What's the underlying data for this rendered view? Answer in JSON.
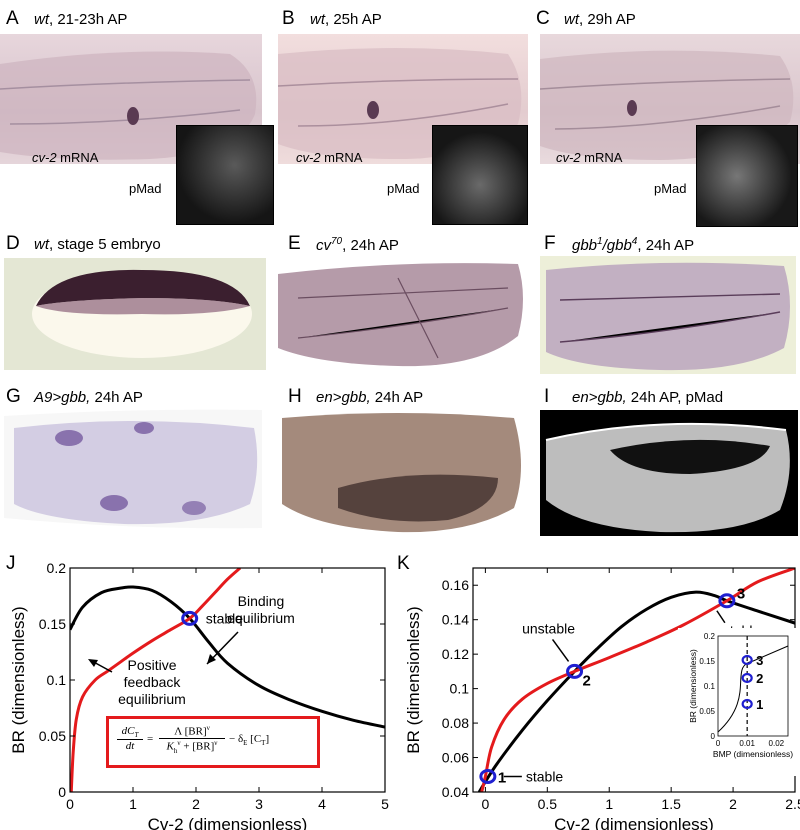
{
  "panels": {
    "A": {
      "letter": "A",
      "genotype": "wt",
      "caption_rest": ", 21-23h AP",
      "mrna_gene": "cv-2",
      "mrna_word": " mRNA",
      "inset": "pMad"
    },
    "B": {
      "letter": "B",
      "genotype": "wt",
      "caption_rest": ", 25h AP",
      "mrna_gene": "cv-2",
      "mrna_word": " mRNA",
      "inset": "pMad"
    },
    "C": {
      "letter": "C",
      "genotype": "wt",
      "caption_rest": ", 29h AP",
      "mrna_gene": "cv-2",
      "mrna_word": " mRNA",
      "inset": "pMad"
    },
    "D": {
      "letter": "D",
      "genotype": "wt",
      "caption_rest": ", stage 5 embryo"
    },
    "E": {
      "letter": "E",
      "genotype": "cv",
      "sup": "70",
      "caption_rest": ", 24h AP"
    },
    "F": {
      "letter": "F",
      "genotype": "gbb",
      "sup": "1",
      "genotype2": "/gbb",
      "sup2": "4",
      "caption_rest": ", 24h AP"
    },
    "G": {
      "letter": "G",
      "genotype": "A9>gbb,",
      "caption_rest": " 24h AP"
    },
    "H": {
      "letter": "H",
      "genotype": "en>gbb,",
      "caption_rest": " 24h AP"
    },
    "I": {
      "letter": "I",
      "genotype": "en>gbb,",
      "caption_rest": " 24h AP, pMad"
    },
    "J": {
      "letter": "J"
    },
    "K": {
      "letter": "K"
    }
  },
  "colors": {
    "red_curve": "#e41a1c",
    "black_curve": "#000000",
    "marker": "#1f1fd0",
    "equation_border": "#e41a1c"
  },
  "chart_data": [
    {
      "id": "J",
      "type": "line",
      "xlabel": "Cv-2 (dimensionless)",
      "ylabel": "BR (dimensionless)",
      "xlim": [
        0,
        5
      ],
      "ylim": [
        0,
        0.2
      ],
      "xticks": [
        "0",
        "1",
        "2",
        "3",
        "4",
        "5"
      ],
      "yticks": [
        "0",
        "0.05",
        "0.1",
        "0.15",
        "0.2"
      ],
      "series": [
        {
          "id": "binding",
          "color": "#000000",
          "x": [
            0,
            0.2,
            0.5,
            0.8,
            1.0,
            1.3,
            1.6,
            1.9,
            2.2,
            2.5,
            3.0,
            3.5,
            4.0,
            4.5,
            5.0
          ],
          "y": [
            0.145,
            0.165,
            0.178,
            0.182,
            0.183,
            0.18,
            0.17,
            0.155,
            0.134,
            0.115,
            0.095,
            0.082,
            0.072,
            0.064,
            0.058
          ]
        },
        {
          "id": "feedback",
          "color": "#e41a1c",
          "x": [
            0.02,
            0.05,
            0.1,
            0.2,
            0.4,
            0.6,
            0.8,
            1.0,
            1.3,
            1.6,
            1.9,
            2.1,
            2.3,
            2.5,
            2.7
          ],
          "y": [
            0.0,
            0.035,
            0.065,
            0.085,
            0.1,
            0.108,
            0.116,
            0.124,
            0.135,
            0.145,
            0.155,
            0.166,
            0.178,
            0.19,
            0.2
          ]
        }
      ],
      "points": [
        {
          "x": 1.9,
          "y": 0.155,
          "label": ""
        }
      ],
      "annotations": [
        "stable",
        "Binding equilibrium",
        "Positive feedback equilibrium"
      ],
      "annotation_lines": {
        "binding": [
          "Binding",
          "equilibrium"
        ],
        "feedback": [
          "Positive",
          "feedback",
          "equilibrium"
        ]
      },
      "equation": {
        "lhs_num": "dC",
        "lhs_sub": "T",
        "lhs_den": "dt",
        "num": "Λ [BR]",
        "num_sup": "ν",
        "den": "K",
        "den_sub": "h",
        "den_sup": "ν",
        "den_rest": " + [BR]",
        "den_sup2": "ν",
        "tail": " − δ",
        "tail_sub": "E",
        "tail_rest": " [C",
        "tail_sub2": "T",
        "tail_end": "]"
      }
    },
    {
      "id": "K",
      "type": "line",
      "xlabel": "Cv-2 (dimensionless)",
      "ylabel": "BR (dimensionless)",
      "xlim": [
        -0.1,
        2.5
      ],
      "ylim": [
        0.04,
        0.17
      ],
      "xticks": [
        "0",
        "0.5",
        "1",
        "1.5",
        "2",
        "2.5"
      ],
      "yticks": [
        "0.04",
        "0.06",
        "0.08",
        "0.1",
        "0.12",
        "0.14",
        "0.16"
      ],
      "series": [
        {
          "id": "binding",
          "color": "#000000",
          "x": [
            -0.05,
            0.0,
            0.1,
            0.3,
            0.5,
            0.72,
            0.9,
            1.1,
            1.3,
            1.5,
            1.7,
            1.85,
            1.95,
            2.2,
            2.5
          ],
          "y": [
            0.04,
            0.046,
            0.057,
            0.076,
            0.093,
            0.11,
            0.123,
            0.136,
            0.146,
            0.153,
            0.156,
            0.154,
            0.151,
            0.145,
            0.138
          ]
        },
        {
          "id": "feedback",
          "color": "#e41a1c",
          "x": [
            -0.03,
            0.0,
            0.05,
            0.15,
            0.3,
            0.5,
            0.72,
            1.0,
            1.3,
            1.6,
            1.95,
            2.2,
            2.5
          ],
          "y": [
            0.04,
            0.049,
            0.066,
            0.082,
            0.094,
            0.103,
            0.11,
            0.118,
            0.127,
            0.137,
            0.151,
            0.162,
            0.17
          ]
        }
      ],
      "points": [
        {
          "x": 0.02,
          "y": 0.049,
          "label": "1"
        },
        {
          "x": 0.72,
          "y": 0.11,
          "label": "2"
        },
        {
          "x": 1.95,
          "y": 0.151,
          "label": "3"
        }
      ],
      "annotations": [
        "stable",
        "unstable",
        "stable"
      ],
      "inset": {
        "xlabel": "BMP (dimensionless)",
        "ylabel": "BR (dimensionless)",
        "xticks": [
          "0",
          "0.01",
          "0.02"
        ],
        "yticks": [
          "0",
          "0.05",
          "0.1",
          "0.15",
          "0.2"
        ],
        "points": [
          "3",
          "2",
          "1"
        ]
      }
    }
  ]
}
